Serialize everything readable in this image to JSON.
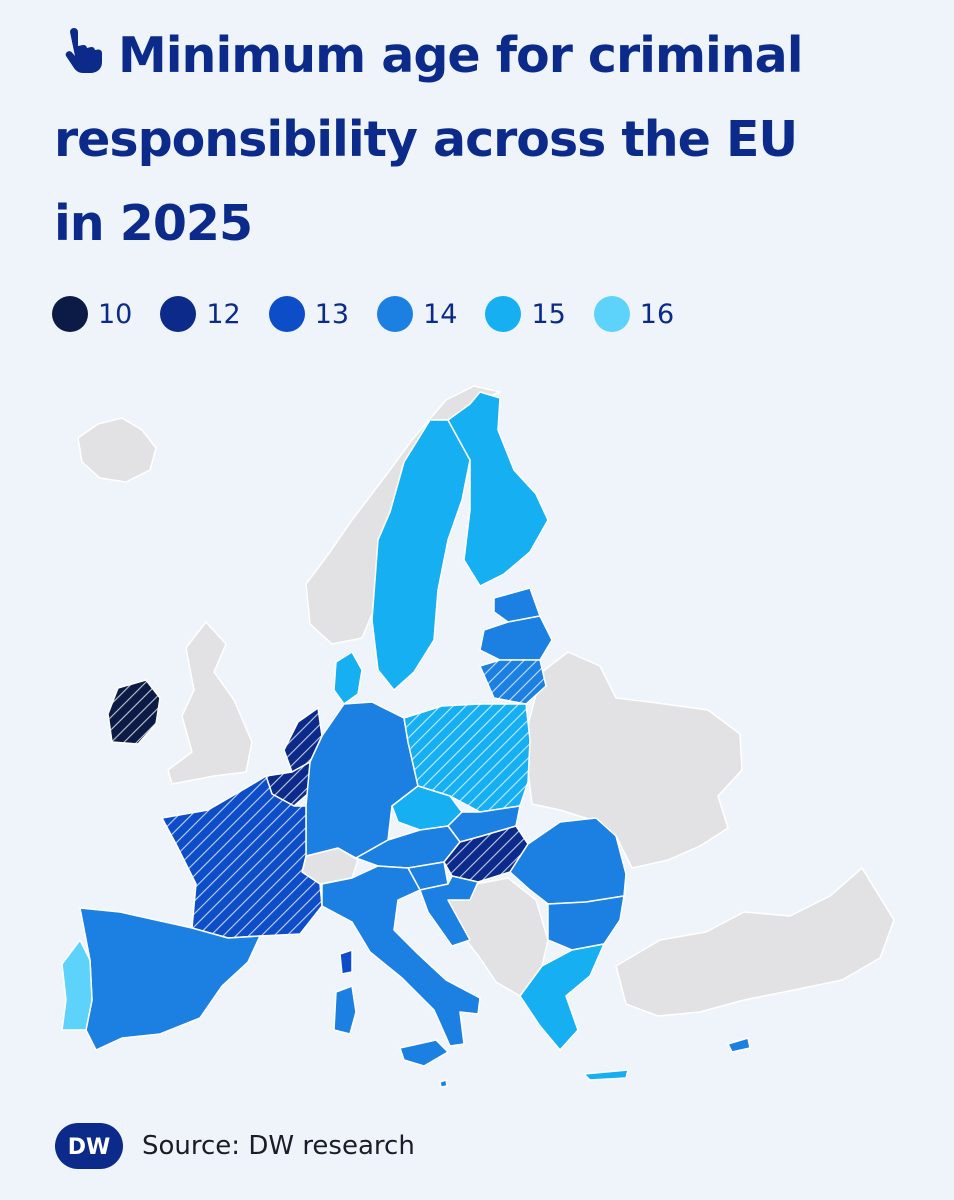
{
  "header": {
    "icon": "pointing-hand-icon",
    "title_lines": [
      "Minimum age for criminal",
      "responsibility across the EU",
      "in 2025"
    ]
  },
  "legend": {
    "items": [
      {
        "label": "10",
        "color": "#0c1b45"
      },
      {
        "label": "12",
        "color": "#0b2a8a"
      },
      {
        "label": "13",
        "color": "#0d4ec8"
      },
      {
        "label": "14",
        "color": "#1b80e2"
      },
      {
        "label": "15",
        "color": "#16b0f2"
      },
      {
        "label": "16",
        "color": "#5dd3fb"
      }
    ]
  },
  "map_data": {
    "type": "choropleth",
    "hatched_note_countries": [
      "Ireland",
      "Netherlands",
      "Belgium",
      "France",
      "Lithuania",
      "Poland",
      "Hungary"
    ],
    "countries": [
      {
        "name": "Ireland",
        "age": 10
      },
      {
        "name": "Netherlands",
        "age": 12
      },
      {
        "name": "Belgium",
        "age": 12
      },
      {
        "name": "Hungary",
        "age": 12
      },
      {
        "name": "France",
        "age": 13
      },
      {
        "name": "Germany",
        "age": 14
      },
      {
        "name": "Austria",
        "age": 14
      },
      {
        "name": "Slovenia",
        "age": 14
      },
      {
        "name": "Croatia",
        "age": 14
      },
      {
        "name": "Slovakia",
        "age": 14
      },
      {
        "name": "Romania",
        "age": 14
      },
      {
        "name": "Bulgaria",
        "age": 14
      },
      {
        "name": "Italy",
        "age": 14
      },
      {
        "name": "Spain",
        "age": 14
      },
      {
        "name": "Latvia",
        "age": 14
      },
      {
        "name": "Lithuania",
        "age": 14
      },
      {
        "name": "Estonia",
        "age": 14
      },
      {
        "name": "Cyprus",
        "age": 14
      },
      {
        "name": "Malta",
        "age": 14
      },
      {
        "name": "Sweden",
        "age": 15
      },
      {
        "name": "Finland",
        "age": 15
      },
      {
        "name": "Denmark",
        "age": 15
      },
      {
        "name": "Czechia",
        "age": 15
      },
      {
        "name": "Greece",
        "age": 15
      },
      {
        "name": "Poland",
        "age": 15
      },
      {
        "name": "Portugal",
        "age": 16
      }
    ]
  },
  "footer": {
    "logo_text": "DW",
    "source": "Source: DW research"
  }
}
